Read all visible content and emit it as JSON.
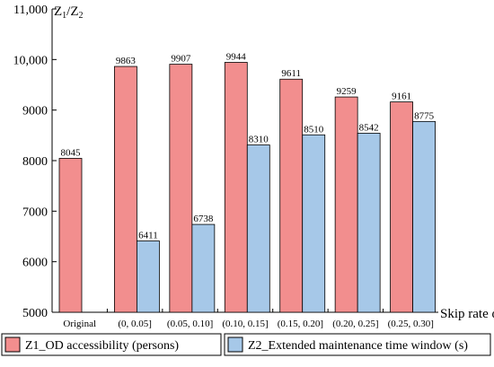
{
  "chart_data": {
    "type": "bar",
    "title": "",
    "ylabel_parts": [
      "Z",
      "1",
      "/Z",
      "2"
    ],
    "xlabel": "Skip rate α",
    "ylim": [
      5000,
      11000
    ],
    "yticks": [
      5000,
      6000,
      7000,
      8000,
      9000,
      10000,
      11000
    ],
    "ytick_labels": [
      "5000",
      "6000",
      "7000",
      "8000",
      "9000",
      "10,000",
      "11,000"
    ],
    "categories": [
      "Original",
      "(0, 0.05]",
      "(0.05, 0.10]",
      "(0.10, 0.15]",
      "(0.15, 0.20]",
      "(0.20, 0.25]",
      "(0.25, 0.30]"
    ],
    "series": [
      {
        "name": "Z1_OD accessibility (persons)",
        "color": "#f28e8e",
        "values": [
          8045,
          9863,
          9907,
          9944,
          9611,
          9259,
          9161
        ]
      },
      {
        "name": "Z2_Extended maintenance time window (s)",
        "color": "#a6c8e8",
        "values": [
          null,
          6411,
          6738,
          8310,
          8510,
          8542,
          8775
        ]
      }
    ],
    "legend_position": "bottom",
    "grid": false
  }
}
